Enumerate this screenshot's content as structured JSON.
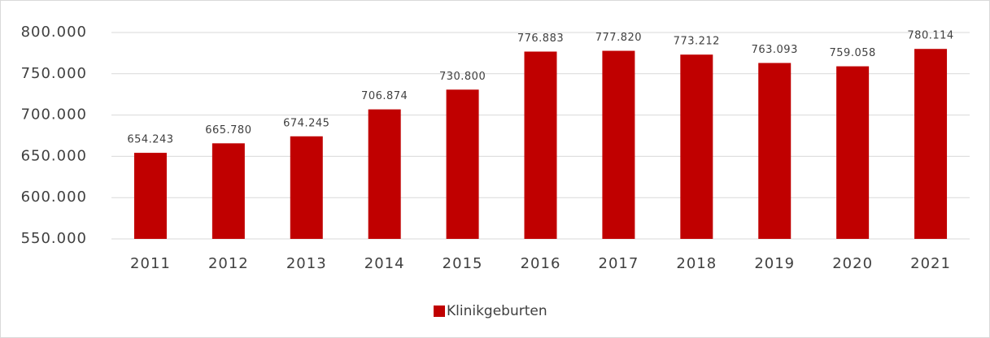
{
  "chart_data": {
    "type": "bar",
    "categories": [
      "2011",
      "2012",
      "2013",
      "2014",
      "2015",
      "2016",
      "2017",
      "2018",
      "2019",
      "2020",
      "2021"
    ],
    "series": [
      {
        "name": "Klinikgeburten",
        "color": "#c00000",
        "values": [
          654243,
          665780,
          674245,
          706874,
          730800,
          776883,
          777820,
          773212,
          763093,
          759058,
          780114
        ],
        "value_labels": [
          "654.243",
          "665.780",
          "674.245",
          "706.874",
          "730.800",
          "776.883",
          "777.820",
          "773.212",
          "763.093",
          "759.058",
          "780.114"
        ]
      }
    ],
    "ylim": [
      550000,
      800000
    ],
    "yticks": [
      {
        "value": 550000,
        "label": "550.000"
      },
      {
        "value": 600000,
        "label": "600.000"
      },
      {
        "value": 650000,
        "label": "650.000"
      },
      {
        "value": 700000,
        "label": "700.000"
      },
      {
        "value": 750000,
        "label": "750.000"
      },
      {
        "value": 800000,
        "label": "800.000"
      }
    ],
    "grid": true,
    "legend": "bottom"
  }
}
